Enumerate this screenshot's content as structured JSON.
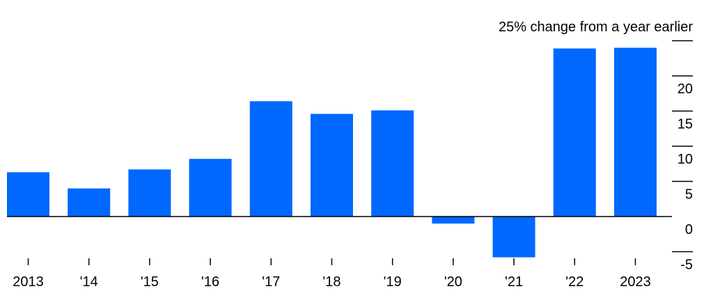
{
  "chart_data": {
    "type": "bar",
    "categories": [
      "2013",
      "'14",
      "'15",
      "'16",
      "'17",
      "'18",
      "'19",
      "'20",
      "'21",
      "'22",
      "2023"
    ],
    "values": [
      6.3,
      4.0,
      6.7,
      8.2,
      16.4,
      14.6,
      15.1,
      -1.0,
      -5.8,
      23.9,
      24.0
    ],
    "top_label": "25% change from a year earlier",
    "y_ticks": [
      20,
      15,
      10,
      5,
      0,
      -5
    ],
    "y_tick_labels": [
      "20",
      "15",
      "10",
      "5",
      "0",
      "-5"
    ],
    "ylim": [
      -6,
      25
    ],
    "grid": false,
    "bar_color": "#0068ff"
  }
}
